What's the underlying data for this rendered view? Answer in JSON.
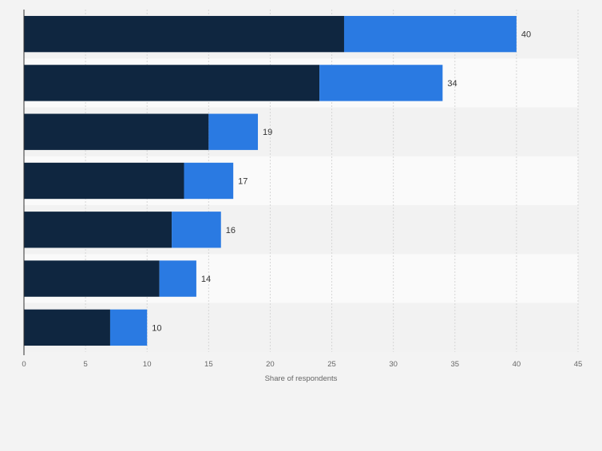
{
  "chart_data": {
    "type": "bar",
    "orientation": "horizontal",
    "stacked": true,
    "categories": [
      "",
      "",
      "",
      "",
      "",
      "",
      ""
    ],
    "series": [
      {
        "color": "#0f2640",
        "values": [
          26,
          24,
          15,
          13,
          12,
          11,
          7
        ]
      },
      {
        "color": "#2a7ae2",
        "values": [
          14,
          10,
          4,
          4,
          4,
          3,
          3
        ]
      }
    ],
    "totals": [
      40,
      34,
      19,
      17,
      16,
      14,
      10
    ],
    "xlabel": "Share of respondents",
    "xlim": [
      0,
      45
    ],
    "xticks": [
      0,
      5,
      10,
      15,
      20,
      25,
      30,
      35,
      40,
      45
    ],
    "grid": "vertical",
    "legend": "none"
  }
}
